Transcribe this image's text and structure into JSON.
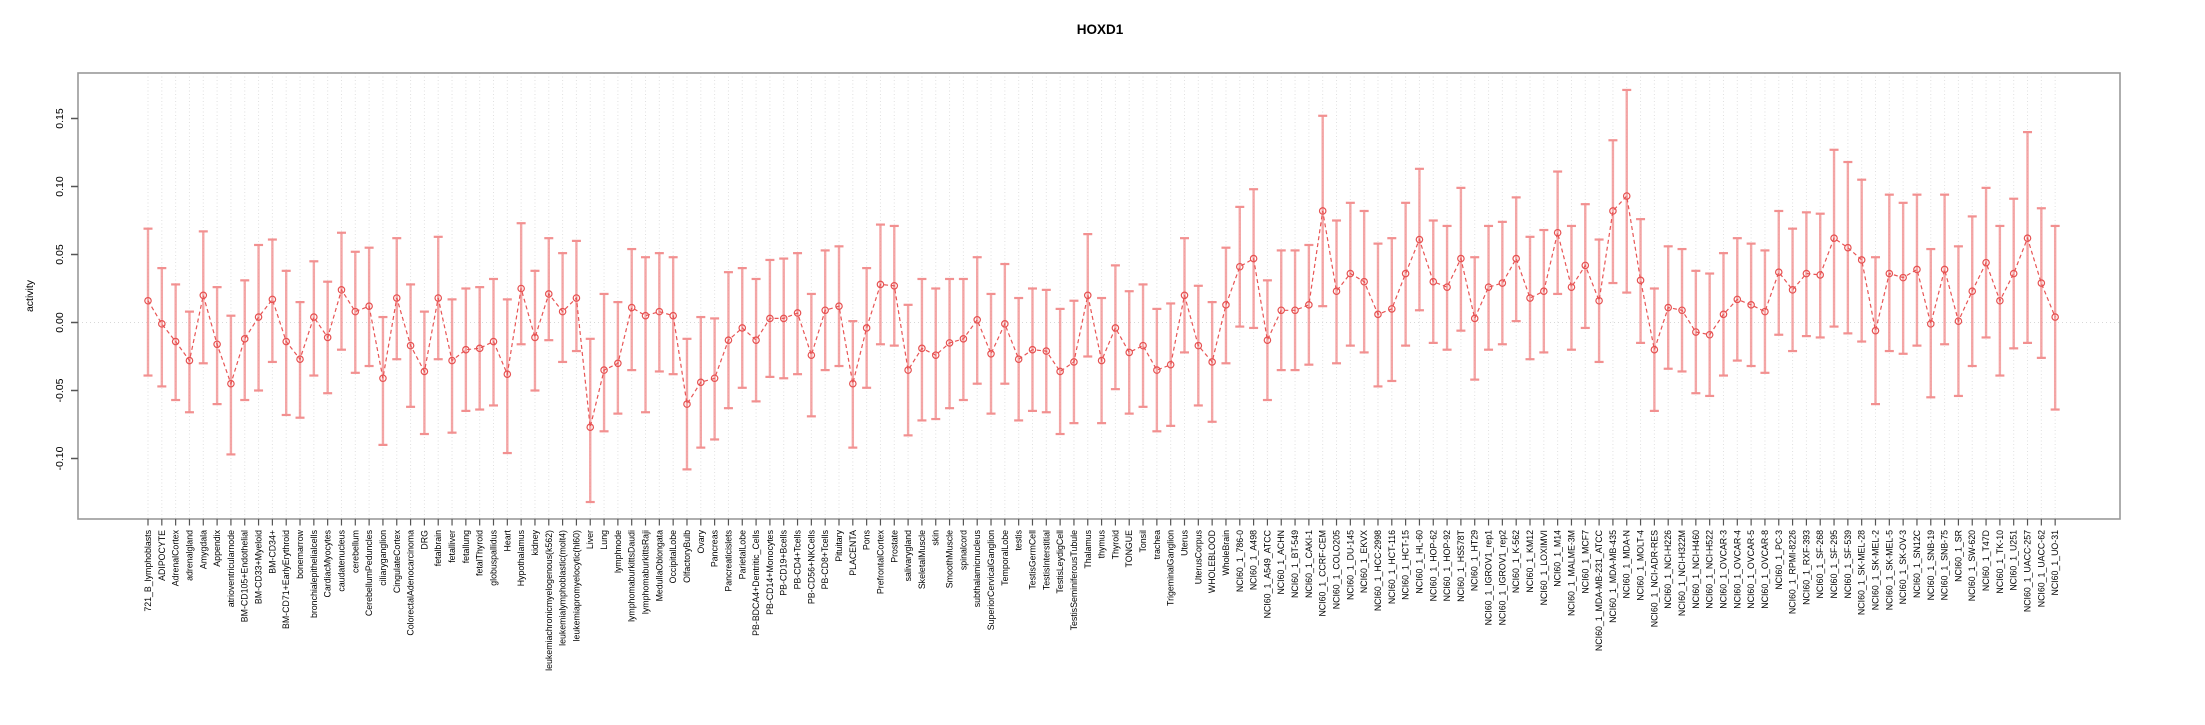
{
  "chart_data": {
    "type": "line",
    "title": "HOXD1",
    "ylabel": "activity",
    "xlabel": "",
    "legend_position": "none",
    "grid": "vertical-dotted-per-category; dotted-zero-line",
    "ylim": [
      -0.145,
      0.185
    ],
    "yticks": [
      -0.1,
      -0.05,
      0.0,
      0.05,
      0.1,
      0.15
    ],
    "colors": {
      "series_color": "#e85555",
      "point_color": "#e65151",
      "errorbar_color": "#f29090",
      "grid_color": "#e0e0e0",
      "zero_line_color": "#d8d8d8",
      "box_color": "#999999",
      "tick_color": "#555555",
      "text_color": "#000000"
    },
    "categories": [
      "721_B_lymphoblasts",
      "ADIPOCYTE",
      "AdrenalCortex",
      "adrenalgland",
      "Amygdala",
      "Appendix",
      "atrioventricularnode",
      "BM-CD105+Endothelial",
      "BM-CD33+Myeloid",
      "BM-CD34+",
      "BM-CD71+EarlyErythroid",
      "bonemarrow",
      "bronchialepithelialcells",
      "CardiacMyocytes",
      "caudatenucleus",
      "cerebellum",
      "CerebellumPeduncles",
      "ciliaryganglion",
      "CingulateCortex",
      "ColorectalAdenocarcinoma",
      "DRG",
      "fetalbrain",
      "fetalliver",
      "fetallung",
      "fetalThyroid",
      "globuspallidus",
      "Heart",
      "Hypothalamus",
      "kidney",
      "leukemiachronicmyelogenous(k562)",
      "leukemialymphoblastic(molt4)",
      "leukemiapromyelocytic(hl60)",
      "Liver",
      "Lung",
      "lymphnode",
      "lymphomaburkittsDaudi",
      "lymphomaburkittsRaji",
      "MedullaOblongata",
      "OccipitalLobe",
      "OlfactoryBulb",
      "Ovary",
      "Pancreas",
      "Pancreaticislets",
      "ParietalLobe",
      "PB-BDCA4+Dentritic_Cells",
      "PB-CD14+Monocytes",
      "PB-CD19+Bcells",
      "PB-CD4+Tcells",
      "PB-CD56+NKCells",
      "PB-CD8+Tcells",
      "Pituitary",
      "PLACENTA",
      "Pons",
      "PrefrontalCortex",
      "Prostate",
      "salivarygland",
      "SkeletalMuscle",
      "skin",
      "SmoothMuscle",
      "spinalcord",
      "subthalamicnucleus",
      "SuperiorCervicalGanglion",
      "TemporalLobe",
      "testis",
      "TestisGermCell",
      "TestisInterstitial",
      "TestisLeydigCell",
      "TestisSeminiferousTubule",
      "Thalamus",
      "thymus",
      "Thyroid",
      "TONGUE",
      "Tonsil",
      "trachea",
      "TrigeminalGanglion",
      "Uterus",
      "UterusCorpus",
      "WHOLEBLOOD",
      "WholeBrain",
      "NCI60_1_786-0",
      "NCI60_1_A498",
      "NCI60_1_A549_ATCC",
      "NCI60_1_ACHN",
      "NCI60_1_BT-549",
      "NCI60_1_CAKI-1",
      "NCI60_1_CCRF-CEM",
      "NCI60_1_COLO205",
      "NCI60_1_DU-145",
      "NCI60_1_EKVX",
      "NCI60_1_HCC-2998",
      "NCI60_1_HCT-116",
      "NCI60_1_HCT-15",
      "NCI60_1_HL-60",
      "NCI60_1_HOP-62",
      "NCI60_1_HOP-92",
      "NCI60_1_HS578T",
      "NCI60_1_HT29",
      "NCI60_1_IGROV1_rep1",
      "NCI60_1_IGROV1_rep2",
      "NCI60_1_K-562",
      "NCI60_1_KM12",
      "NCI60_1_LOXIMVI",
      "NCI60_1_M14",
      "NCI60_1_MALME-3M",
      "NCI60_1_MCF7",
      "NCI60_1_MDA-MB-231_ATCC",
      "NCI60_1_MDA-MB-435",
      "NCI60_1_MDA-N",
      "NCI60_1_MOLT-4",
      "NCI60_1_NCI-ADR-RES",
      "NCI60_1_NCI-H226",
      "NCI60_1_NCI-H322M",
      "NCI60_1_NCI-H460",
      "NCI60_1_NCI-H522",
      "NCI60_1_OVCAR-3",
      "NCI60_1_OVCAR-4",
      "NCI60_1_OVCAR-5",
      "NCI60_1_OVCAR-8",
      "NCI60_1_PC-3",
      "NCI60_1_RPMI-8226",
      "NCI60_1_RXF-393",
      "NCI60_1_SF-268",
      "NCI60_1_SF-295",
      "NCI60_1_SF-539",
      "NCI60_1_SK-MEL-28",
      "NCI60_1_SK-MEL-2",
      "NCI60_1_SK-MEL-5",
      "NCI60_1_SK-OV-3",
      "NCI60_1_SN12C",
      "NCI60_1_SNB-19",
      "NCI60_1_SNB-75",
      "NCI60_1_SR",
      "NCI60_1_SW-620",
      "NCI60_1_T47D",
      "NCI60_1_TK-10",
      "NCI60_1_U251",
      "NCI60_1_UACC-257",
      "NCI60_1_UACC-62",
      "NCI60_1_UO-31"
    ],
    "values": [
      0.016,
      -0.001,
      -0.014,
      -0.028,
      0.02,
      -0.016,
      -0.045,
      -0.012,
      0.004,
      0.017,
      -0.014,
      -0.027,
      0.004,
      -0.011,
      0.024,
      0.008,
      0.012,
      -0.041,
      0.018,
      -0.017,
      -0.036,
      0.018,
      -0.028,
      -0.02,
      -0.019,
      -0.014,
      -0.038,
      0.025,
      -0.011,
      0.021,
      0.008,
      0.018,
      -0.077,
      -0.035,
      -0.03,
      0.011,
      0.005,
      0.008,
      0.005,
      -0.06,
      -0.044,
      -0.041,
      -0.013,
      -0.004,
      -0.013,
      0.003,
      0.003,
      0.007,
      -0.024,
      0.009,
      0.012,
      -0.045,
      -0.004,
      0.028,
      0.027,
      -0.035,
      -0.019,
      -0.024,
      -0.015,
      -0.012,
      0.002,
      -0.023,
      -0.001,
      -0.027,
      -0.02,
      -0.021,
      -0.036,
      -0.029,
      0.02,
      -0.028,
      -0.004,
      -0.022,
      -0.017,
      -0.035,
      -0.031,
      0.02,
      -0.017,
      -0.029,
      0.013,
      0.041,
      0.047,
      -0.013,
      0.009,
      0.009,
      0.013,
      0.082,
      0.023,
      0.036,
      0.03,
      0.006,
      0.01,
      0.036,
      0.061,
      0.03,
      0.026,
      0.047,
      0.003,
      0.026,
      0.029,
      0.047,
      0.018,
      0.023,
      0.066,
      0.026,
      0.042,
      0.016,
      0.082,
      0.093,
      0.031,
      -0.02,
      0.011,
      0.009,
      -0.007,
      -0.009,
      0.006,
      0.017,
      0.013,
      0.008,
      0.037,
      0.024,
      0.036,
      0.035,
      0.062,
      0.055,
      0.046,
      -0.006,
      0.036,
      0.033,
      0.039,
      -0.001,
      0.039,
      0.001,
      0.023,
      0.044,
      0.016,
      0.036,
      0.062,
      0.029,
      0.004
    ],
    "err_high": [
      0.069,
      0.04,
      0.028,
      0.008,
      0.067,
      0.026,
      0.005,
      0.031,
      0.057,
      0.061,
      0.038,
      0.015,
      0.045,
      0.03,
      0.066,
      0.052,
      0.055,
      0.004,
      0.062,
      0.028,
      0.008,
      0.063,
      0.017,
      0.025,
      0.026,
      0.032,
      0.017,
      0.073,
      0.038,
      0.062,
      0.051,
      0.06,
      -0.012,
      0.021,
      0.015,
      0.054,
      0.048,
      0.051,
      0.048,
      -0.012,
      0.004,
      0.003,
      0.037,
      0.04,
      0.032,
      0.046,
      0.047,
      0.051,
      0.021,
      0.053,
      0.056,
      0.001,
      0.04,
      0.072,
      0.071,
      0.013,
      0.032,
      0.025,
      0.032,
      0.032,
      0.048,
      0.021,
      0.043,
      0.018,
      0.025,
      0.024,
      0.01,
      0.016,
      0.065,
      0.018,
      0.042,
      0.023,
      0.028,
      0.01,
      0.014,
      0.062,
      0.027,
      0.015,
      0.055,
      0.085,
      0.098,
      0.031,
      0.053,
      0.053,
      0.057,
      0.152,
      0.075,
      0.088,
      0.082,
      0.058,
      0.062,
      0.088,
      0.113,
      0.075,
      0.071,
      0.099,
      0.048,
      0.071,
      0.074,
      0.092,
      0.063,
      0.068,
      0.111,
      0.071,
      0.087,
      0.061,
      0.134,
      0.171,
      0.076,
      0.025,
      0.056,
      0.054,
      0.038,
      0.036,
      0.051,
      0.062,
      0.058,
      0.053,
      0.082,
      0.069,
      0.081,
      0.08,
      0.127,
      0.118,
      0.105,
      0.048,
      0.094,
      0.088,
      0.094,
      0.054,
      0.094,
      0.056,
      0.078,
      0.099,
      0.071,
      0.091,
      0.14,
      0.084,
      0.071
    ],
    "err_low": [
      -0.039,
      -0.047,
      -0.057,
      -0.066,
      -0.03,
      -0.06,
      -0.097,
      -0.057,
      -0.05,
      -0.029,
      -0.068,
      -0.07,
      -0.039,
      -0.052,
      -0.02,
      -0.037,
      -0.032,
      -0.09,
      -0.027,
      -0.062,
      -0.082,
      -0.027,
      -0.081,
      -0.065,
      -0.064,
      -0.061,
      -0.096,
      -0.016,
      -0.05,
      -0.013,
      -0.029,
      -0.021,
      -0.132,
      -0.08,
      -0.067,
      -0.035,
      -0.066,
      -0.036,
      -0.038,
      -0.108,
      -0.092,
      -0.086,
      -0.063,
      -0.048,
      -0.058,
      -0.04,
      -0.041,
      -0.038,
      -0.069,
      -0.035,
      -0.032,
      -0.092,
      -0.048,
      -0.016,
      -0.017,
      -0.083,
      -0.072,
      -0.071,
      -0.063,
      -0.057,
      -0.045,
      -0.067,
      -0.045,
      -0.072,
      -0.065,
      -0.066,
      -0.082,
      -0.074,
      -0.025,
      -0.074,
      -0.049,
      -0.067,
      -0.062,
      -0.08,
      -0.076,
      -0.022,
      -0.061,
      -0.073,
      -0.03,
      -0.003,
      -0.004,
      -0.057,
      -0.035,
      -0.035,
      -0.031,
      0.012,
      -0.03,
      -0.017,
      -0.022,
      -0.047,
      -0.043,
      -0.017,
      0.009,
      -0.015,
      -0.02,
      -0.006,
      -0.042,
      -0.02,
      -0.016,
      0.001,
      -0.027,
      -0.022,
      0.021,
      -0.02,
      -0.004,
      -0.029,
      0.029,
      0.022,
      -0.015,
      -0.065,
      -0.034,
      -0.036,
      -0.052,
      -0.054,
      -0.039,
      -0.028,
      -0.032,
      -0.037,
      -0.009,
      -0.021,
      -0.01,
      -0.011,
      -0.003,
      -0.008,
      -0.014,
      -0.06,
      -0.021,
      -0.023,
      -0.017,
      -0.055,
      -0.016,
      -0.054,
      -0.032,
      -0.011,
      -0.039,
      -0.019,
      -0.015,
      -0.026,
      -0.064
    ]
  }
}
